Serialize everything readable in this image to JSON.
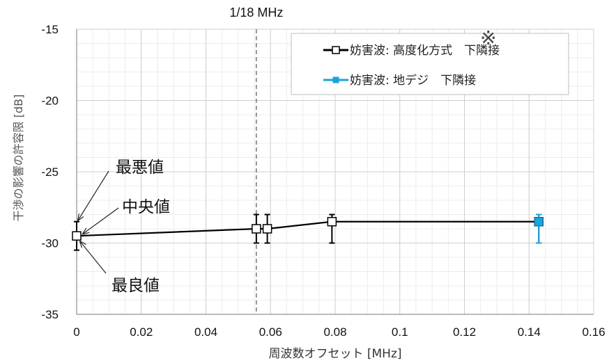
{
  "chart_data": {
    "type": "line",
    "xlabel": "周波数オフセット [MHz]",
    "ylabel": "干渉の影響の許容限 [dB]",
    "xlim": [
      0,
      0.16
    ],
    "ylim": [
      -35,
      -15
    ],
    "x_ticks": [
      0,
      0.02,
      0.04,
      0.06,
      0.08,
      0.1,
      0.12,
      0.14,
      0.16
    ],
    "x_tick_labels": [
      "0",
      "0.02",
      "0.04",
      "0.06",
      "0.08",
      "0.1",
      "0.12",
      "0.14",
      "0.16"
    ],
    "y_ticks": [
      -15,
      -20,
      -25,
      -30,
      -35
    ],
    "y_tick_labels": [
      "-15",
      "-20",
      "-25",
      "-30",
      "-35"
    ],
    "grid": true,
    "reference_line": {
      "x": 0.0556,
      "label": "1/18 MHz"
    },
    "legend_position": "top-right",
    "note_mark": "※",
    "series": [
      {
        "name": "妨害波: 高度化方式　下隣接",
        "color": "#000000",
        "marker": "open-square",
        "points": [
          {
            "x": 0,
            "y": -29.5,
            "best": -30.5,
            "worst": -28.5
          },
          {
            "x": 0.0556,
            "y": -29.0,
            "best": -30.0,
            "worst": -28.0
          },
          {
            "x": 0.059,
            "y": -29.0,
            "best": -30.0,
            "worst": -28.0
          },
          {
            "x": 0.079,
            "y": -28.5,
            "best": -30.0,
            "worst": -28.0
          },
          {
            "x": 0.143,
            "y": -28.5,
            "best": -30.0,
            "worst": -28.0
          }
        ]
      },
      {
        "name": "妨害波: 地デジ　下隣接",
        "color": "#1aa3dc",
        "marker": "filled-square",
        "points": [
          {
            "x": 0.143,
            "y": -28.5,
            "best": -30.0,
            "worst": -28.0
          }
        ]
      }
    ],
    "annotations": [
      {
        "text": "最悪値",
        "points_to": "worst"
      },
      {
        "text": "中央値",
        "points_to": "median"
      },
      {
        "text": "最良値",
        "points_to": "best"
      }
    ]
  }
}
